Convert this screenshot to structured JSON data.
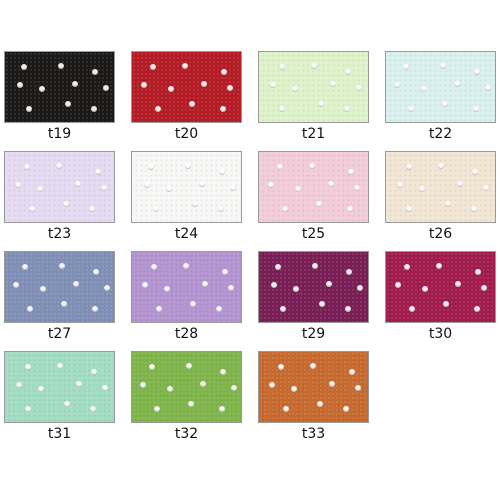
{
  "swatches": [
    {
      "label": "t19",
      "color": "#1c1a18"
    },
    {
      "label": "t20",
      "color": "#b51c25"
    },
    {
      "label": "t21",
      "color": "#def3c9"
    },
    {
      "label": "t22",
      "color": "#d9f1ee"
    },
    {
      "label": "t23",
      "color": "#e6d9f2"
    },
    {
      "label": "t24",
      "color": "#f7f7f6"
    },
    {
      "label": "t25",
      "color": "#f2ccd9"
    },
    {
      "label": "t26",
      "color": "#f1e6d3"
    },
    {
      "label": "t27",
      "color": "#7f90b7"
    },
    {
      "label": "t28",
      "color": "#b394d1"
    },
    {
      "label": "t29",
      "color": "#7a1f56"
    },
    {
      "label": "t30",
      "color": "#a11c4d"
    },
    {
      "label": "t31",
      "color": "#a2dcc2"
    },
    {
      "label": "t32",
      "color": "#7fb54b"
    },
    {
      "label": "t33",
      "color": "#c76a2f"
    }
  ]
}
